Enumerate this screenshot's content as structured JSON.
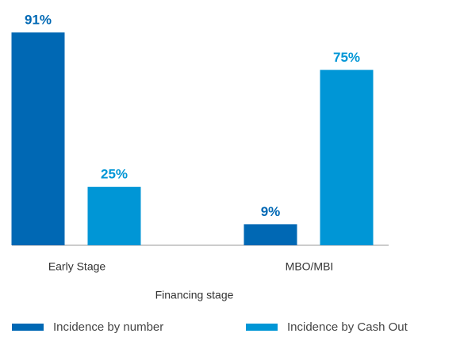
{
  "chart_data": {
    "type": "bar",
    "x_label": "Financing stage",
    "categories": [
      "Early Stage",
      "MBO/MBI"
    ],
    "series": [
      {
        "name": "Incidence by number",
        "color": "#0068b4",
        "values": [
          91,
          9
        ],
        "value_labels": [
          "91%",
          "9%"
        ]
      },
      {
        "name": "Incidence by Cash Out",
        "color": "#0096d6",
        "values": [
          25,
          75
        ],
        "value_labels": [
          "25%",
          "75%"
        ]
      }
    ],
    "ylim": [
      0,
      100
    ]
  }
}
